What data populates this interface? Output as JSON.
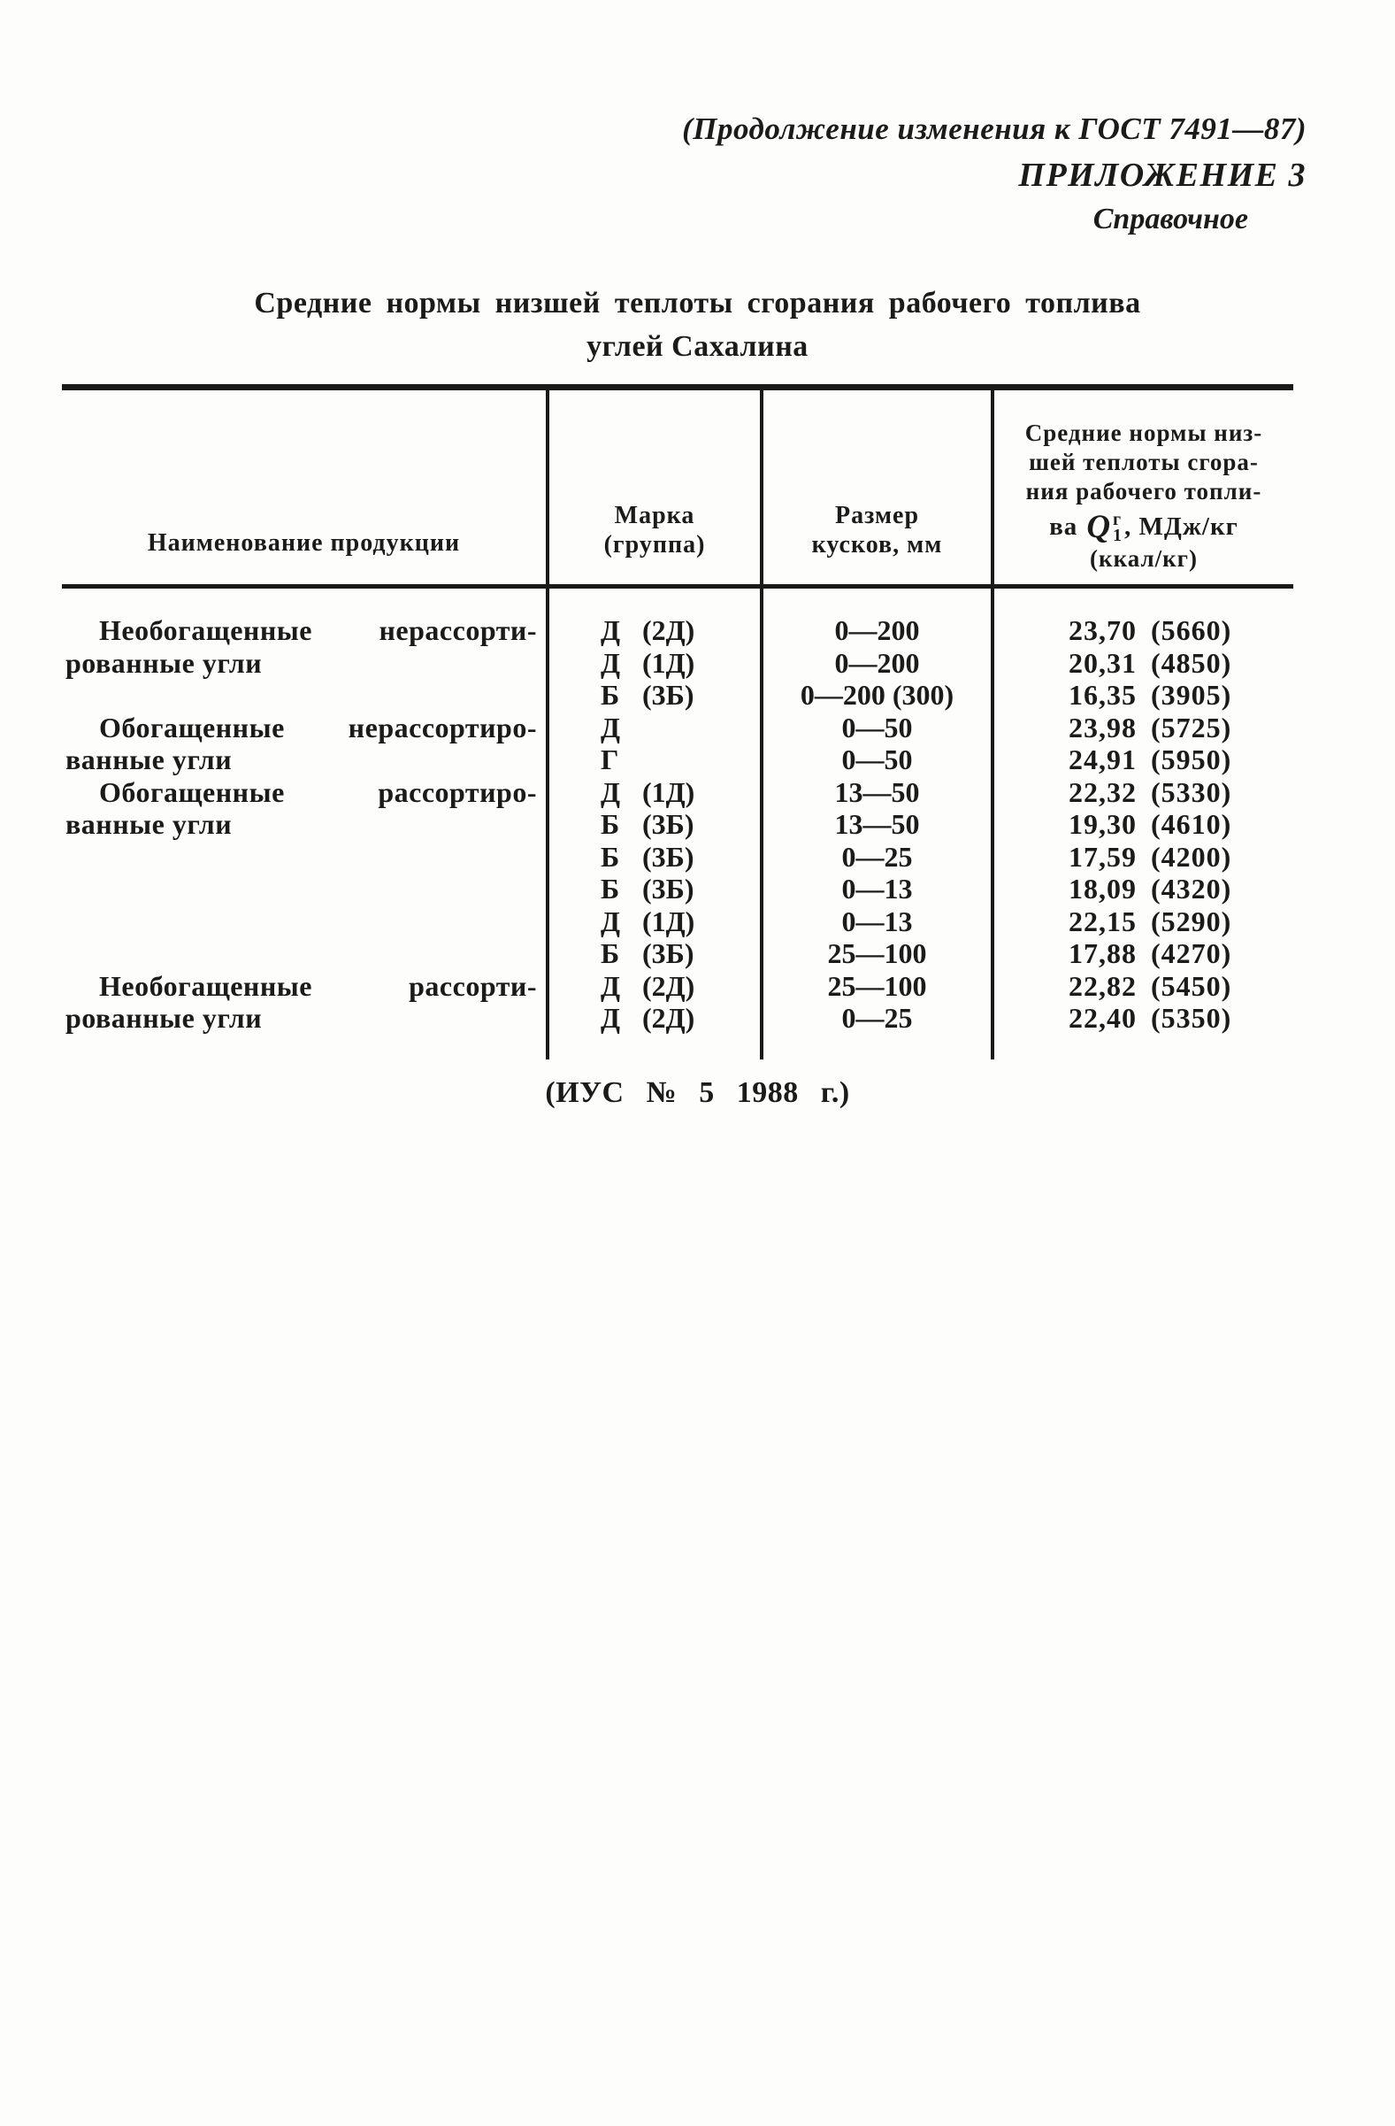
{
  "header": {
    "continuation": "(Продолжение изменения к ГОСТ 7491—87)",
    "appendix": "ПРИЛОЖЕНИЕ 3",
    "note": "Справочное"
  },
  "title": {
    "line1": "Средние нормы низшей теплоты сгорания рабочего топлива",
    "line2": "углей Сахалина"
  },
  "table": {
    "col1_header": "Наименование продукции",
    "col2_header": [
      "Марка",
      "(группа)"
    ],
    "col3_header": [
      "Размер",
      "кусков, мм"
    ],
    "col4_header": {
      "line1": "Средние нормы низ-",
      "line2": "шей теплоты сгора-",
      "line3": "ния рабочего топли-",
      "formula_prefix": "ва",
      "formula_symbol": "Q",
      "formula_sup": "г",
      "formula_sub": "1",
      "formula_suffix": ", МДж/кг",
      "line5": "(ккал/кг)"
    },
    "rows": [
      {
        "name1": "Необогащенные",
        "name2": "нерассорти-",
        "mark": "Д",
        "group": "(2Д)",
        "size": "0—200",
        "mj": "23,70",
        "kcal": "(5660)"
      },
      {
        "name1": "рованные угли",
        "name2": "",
        "mark": "Д",
        "group": "(1Д)",
        "size": "0—200",
        "mj": "20,31",
        "kcal": "(4850)"
      },
      {
        "name1": "",
        "name2": "",
        "mark": "Б",
        "group": "(3Б)",
        "size": "0—200 (300)",
        "mj": "16,35",
        "kcal": "(3905)"
      },
      {
        "name1": "Обогащенные",
        "name2": "нерассортиро-",
        "mark": "Д",
        "group": "",
        "size": "0—50",
        "mj": "23,98",
        "kcal": "(5725)"
      },
      {
        "name1": "ванные угли",
        "name2": "",
        "mark": "Г",
        "group": "",
        "size": "0—50",
        "mj": "24,91",
        "kcal": "(5950)"
      },
      {
        "name1": "Обогащенные",
        "name2": "рассортиро-",
        "mark": "Д",
        "group": "(1Д)",
        "size": "13—50",
        "mj": "22,32",
        "kcal": "(5330)"
      },
      {
        "name1": "ванные угли",
        "name2": "",
        "mark": "Б",
        "group": "(3Б)",
        "size": "13—50",
        "mj": "19,30",
        "kcal": "(4610)"
      },
      {
        "name1": "",
        "name2": "",
        "mark": "Б",
        "group": "(3Б)",
        "size": "0—25",
        "mj": "17,59",
        "kcal": "(4200)"
      },
      {
        "name1": "",
        "name2": "",
        "mark": "Б",
        "group": "(3Б)",
        "size": "0—13",
        "mj": "18,09",
        "kcal": "(4320)"
      },
      {
        "name1": "",
        "name2": "",
        "mark": "Д",
        "group": "(1Д)",
        "size": "0—13",
        "mj": "22,15",
        "kcal": "(5290)"
      },
      {
        "name1": "",
        "name2": "",
        "mark": "Б",
        "group": "(3Б)",
        "size": "25—100",
        "mj": "17,88",
        "kcal": "(4270)"
      },
      {
        "name1": "Необогащенные",
        "name2": "рассорти-",
        "mark": "Д",
        "group": "(2Д)",
        "size": "25—100",
        "mj": "22,82",
        "kcal": "(5450)"
      },
      {
        "name1": "рованные угли",
        "name2": "",
        "mark": "Д",
        "group": "(2Д)",
        "size": "0—25",
        "mj": "22,40",
        "kcal": "(5350)"
      }
    ]
  },
  "footer": {
    "source": "(ИУС № 5 1988 г.)"
  }
}
